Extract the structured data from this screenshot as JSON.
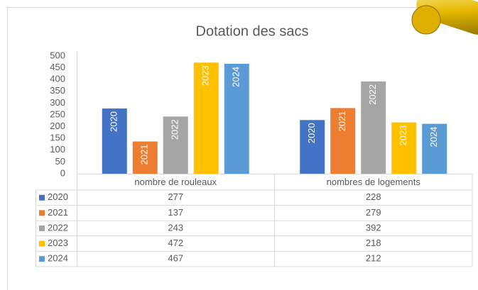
{
  "chart_data": {
    "type": "bar",
    "title": "Dotation des sacs",
    "categories": [
      "nombre de rouleaux",
      "nombres de logements"
    ],
    "series": [
      {
        "name": "2020",
        "color": "#4472c4",
        "values": [
          277,
          228
        ]
      },
      {
        "name": "2021",
        "color": "#ed7d31",
        "values": [
          137,
          279
        ]
      },
      {
        "name": "2022",
        "color": "#a5a5a5",
        "values": [
          243,
          392
        ]
      },
      {
        "name": "2023",
        "color": "#ffc000",
        "values": [
          472,
          218
        ]
      },
      {
        "name": "2024",
        "color": "#5b9bd5",
        "values": [
          467,
          212
        ]
      }
    ],
    "ylim": [
      0,
      500
    ],
    "yticks": [
      0,
      50,
      100,
      150,
      200,
      250,
      300,
      350,
      400,
      450,
      500
    ],
    "grid": false
  }
}
